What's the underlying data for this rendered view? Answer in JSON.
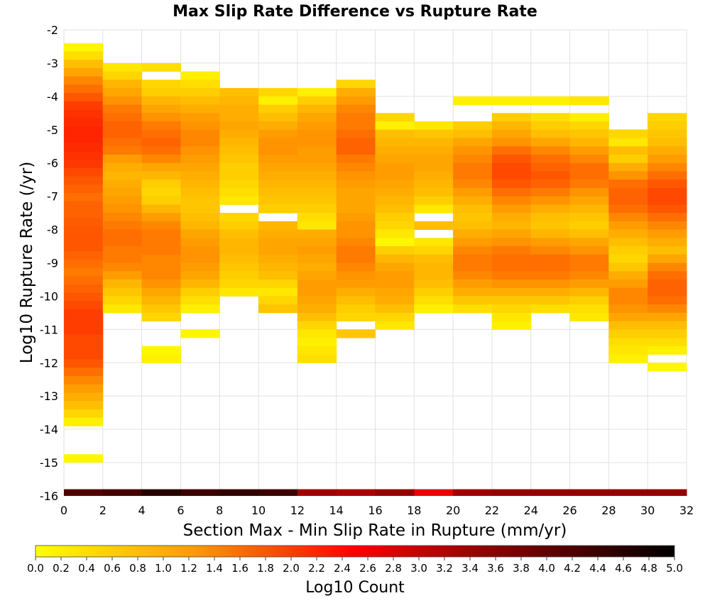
{
  "chart_data": {
    "type": "heatmap",
    "title": "Max Slip Rate Difference vs Rupture Rate",
    "xlabel": "Section Max - Min Slip Rate in Rupture (mm/yr)",
    "ylabel": "Log10 Rupture Rate (/yr)",
    "xlim": [
      0,
      32
    ],
    "ylim": [
      -16,
      -2
    ],
    "x_ticks": [
      0,
      2,
      4,
      6,
      8,
      10,
      12,
      14,
      16,
      18,
      20,
      22,
      24,
      26,
      28,
      30,
      32
    ],
    "y_ticks": [
      -2,
      -3,
      -4,
      -5,
      -6,
      -7,
      -8,
      -9,
      -10,
      -11,
      -12,
      -13,
      -14,
      -15,
      -16
    ],
    "x_bin_width": 2,
    "y_bin_height": 0.25,
    "grid": true,
    "colorbar": {
      "label": "Log10 Count",
      "range": [
        0.0,
        5.0
      ],
      "ticks": [
        "0.0",
        "0.2",
        "0.4",
        "0.6",
        "0.8",
        "1.0",
        "1.2",
        "1.4",
        "1.6",
        "1.8",
        "2.0",
        "2.2",
        "2.4",
        "2.6",
        "2.8",
        "3.0",
        "3.2",
        "3.4",
        "3.6",
        "3.8",
        "4.0",
        "4.2",
        "4.4",
        "4.6",
        "4.8",
        "5.0"
      ],
      "colors": [
        "#ffff00",
        "#ff9900",
        "#ff0000",
        "#7a0000",
        "#000000"
      ],
      "placement": "bottom"
    },
    "columns": [
      {
        "x_start": 0,
        "y_top": -2.4,
        "values": [
          0.1,
          0.4,
          0.8,
          1.1,
          1.4,
          1.6,
          1.8,
          2.0,
          2.1,
          2.15,
          2.2,
          2.2,
          2.15,
          2.1,
          2.05,
          1.9,
          1.8,
          1.7,
          1.6,
          1.7,
          1.7,
          1.75,
          1.8,
          1.8,
          1.8,
          1.7,
          1.6,
          1.5,
          1.6,
          1.7,
          1.8,
          1.9,
          2.0,
          2.0,
          2.0,
          1.9,
          1.9,
          1.9,
          1.8,
          1.6,
          1.4,
          1.2,
          1.0,
          0.8,
          0.5,
          0.2
        ],
        "extra": [
          {
            "y_low": -15.0,
            "y_high": -14.75,
            "value": 0.1
          },
          {
            "y_low": -16.0,
            "y_high": -15.8,
            "value": 4.2
          }
        ]
      },
      {
        "x_start": 2,
        "y_top": -3.0,
        "values": [
          0.3,
          0.5,
          0.9,
          1.1,
          1.3,
          1.5,
          1.6,
          1.7,
          1.7,
          1.6,
          1.5,
          1.2,
          1.0,
          0.9,
          1.0,
          1.1,
          1.2,
          1.3,
          1.4,
          1.5,
          1.6,
          1.6,
          1.5,
          1.5,
          1.4,
          1.2,
          0.9,
          0.7,
          0.5,
          0.3
        ],
        "extra": [
          {
            "y_low": -16.0,
            "y_high": -15.8,
            "value": 4.3
          }
        ]
      },
      {
        "x_start": 4,
        "y_top": -3.0,
        "values": [
          0.4,
          null,
          0.5,
          0.6,
          0.9,
          1.1,
          1.3,
          1.5,
          1.6,
          1.7,
          1.6,
          1.4,
          1.1,
          0.9,
          0.6,
          0.5,
          0.6,
          0.9,
          1.2,
          1.4,
          1.5,
          1.5,
          1.5,
          1.4,
          1.4,
          1.4,
          1.3,
          1.1,
          0.9,
          0.7,
          0.5,
          null,
          null,
          null,
          0.1,
          0.2
        ],
        "extra": [
          {
            "y_low": -16.0,
            "y_high": -15.8,
            "value": 4.6
          }
        ]
      },
      {
        "x_start": 6,
        "y_top": -3.25,
        "values": [
          0.2,
          0.4,
          0.6,
          0.8,
          1.0,
          1.2,
          1.3,
          1.4,
          1.4,
          1.3,
          1.2,
          1.1,
          1.0,
          0.9,
          0.8,
          0.7,
          0.7,
          0.8,
          0.9,
          1.1,
          1.2,
          1.3,
          1.3,
          1.2,
          1.1,
          0.9,
          0.6,
          0.4,
          0.2,
          null,
          null,
          0.1
        ],
        "extra": [
          {
            "y_low": -16.0,
            "y_high": -15.8,
            "value": 4.4
          }
        ]
      },
      {
        "x_start": 8,
        "y_top": -3.75,
        "values": [
          0.8,
          0.9,
          1.0,
          1.0,
          1.1,
          1.0,
          0.9,
          0.8,
          0.7,
          0.6,
          0.6,
          0.5,
          0.4,
          0.3,
          null,
          0.5,
          0.6,
          0.8,
          0.9,
          0.9,
          0.8,
          0.7,
          0.6,
          0.5,
          0.3
        ],
        "extra": [
          {
            "y_low": -16.0,
            "y_high": -15.8,
            "value": 4.5
          }
        ]
      },
      {
        "x_start": 10,
        "y_top": -3.75,
        "values": [
          0.5,
          0.2,
          0.6,
          0.8,
          1.0,
          1.2,
          1.3,
          1.3,
          1.2,
          1.1,
          1.0,
          0.9,
          0.8,
          0.7,
          0.6,
          null,
          0.9,
          1.0,
          1.1,
          1.1,
          1.0,
          0.9,
          0.8,
          0.5,
          0.3,
          0.5,
          0.7
        ],
        "extra": [
          {
            "y_low": -16.0,
            "y_high": -15.8,
            "value": 4.4
          }
        ]
      },
      {
        "x_start": 12,
        "y_top": -3.75,
        "values": [
          0.2,
          0.6,
          0.9,
          1.1,
          1.2,
          1.3,
          1.3,
          1.2,
          1.2,
          1.1,
          1.0,
          0.9,
          0.8,
          0.7,
          0.6,
          0.4,
          0.3,
          1.0,
          1.1,
          1.2,
          1.1,
          1.0,
          1.1,
          1.2,
          1.2,
          1.1,
          1.0,
          0.8,
          0.5,
          0.3,
          0.2,
          0.3,
          0.4
        ],
        "extra": [
          {
            "y_low": -16.0,
            "y_high": -15.8,
            "value": 3.4
          }
        ]
      },
      {
        "x_start": 14,
        "y_top": -3.5,
        "values": [
          0.5,
          1.0,
          1.2,
          1.4,
          1.5,
          1.5,
          1.6,
          1.7,
          1.7,
          1.5,
          1.4,
          1.3,
          1.2,
          1.1,
          1.1,
          1.1,
          1.2,
          1.3,
          1.3,
          1.4,
          1.5,
          1.5,
          1.4,
          1.3,
          1.2,
          1.0,
          0.8,
          0.6,
          0.5,
          null,
          0.7
        ],
        "extra": [
          {
            "y_low": -16.0,
            "y_high": -15.8,
            "value": 3.3
          }
        ]
      },
      {
        "x_start": 16,
        "y_top": -4.5,
        "values": [
          0.5,
          0.2,
          0.8,
          0.9,
          1.0,
          1.1,
          1.2,
          1.2,
          1.1,
          1.0,
          0.9,
          0.8,
          0.6,
          0.5,
          0.3,
          0.1,
          0.6,
          0.9,
          1.1,
          1.2,
          1.2,
          1.1,
          1.0,
          0.8,
          0.5,
          0.3
        ],
        "extra": [
          {
            "y_low": -16.0,
            "y_high": -15.8,
            "value": 3.5
          }
        ]
      },
      {
        "x_start": 18,
        "y_top": -4.75,
        "values": [
          0.3,
          0.7,
          0.9,
          1.0,
          1.1,
          1.1,
          1.0,
          0.9,
          0.8,
          0.6,
          0.3,
          null,
          0.8,
          null,
          0.3,
          0.5,
          0.8,
          0.9,
          0.9,
          0.8,
          0.6,
          0.4,
          0.2
        ],
        "extra": [
          {
            "y_low": -16.0,
            "y_high": -15.8,
            "value": 2.7
          }
        ]
      },
      {
        "x_start": 20,
        "y_top": -4.0,
        "values": [
          0.2,
          null,
          null,
          0.6,
          0.8,
          1.1,
          1.3,
          1.4,
          1.5,
          1.5,
          1.4,
          1.2,
          1.0,
          0.8,
          0.7,
          0.8,
          1.0,
          1.2,
          1.4,
          1.5,
          1.5,
          1.4,
          1.2,
          1.0,
          0.7,
          0.4
        ],
        "extra": [
          {
            "y_low": -16.0,
            "y_high": -15.8,
            "value": 3.4
          }
        ]
      },
      {
        "x_start": 22,
        "y_top": -4.0,
        "values": [
          0.2,
          null,
          0.6,
          0.9,
          1.1,
          1.3,
          1.6,
          1.8,
          1.9,
          1.9,
          1.8,
          1.6,
          1.4,
          1.2,
          1.0,
          0.9,
          1.1,
          1.3,
          1.5,
          1.6,
          1.6,
          1.5,
          1.3,
          1.0,
          0.7,
          0.5,
          0.3,
          0.2
        ],
        "extra": [
          {
            "y_low": -16.0,
            "y_high": -15.8,
            "value": 3.5
          }
        ]
      },
      {
        "x_start": 24,
        "y_top": -4.0,
        "values": [
          0.2,
          null,
          0.4,
          0.6,
          0.8,
          1.1,
          1.4,
          1.6,
          1.7,
          1.8,
          1.7,
          1.5,
          1.3,
          1.0,
          0.8,
          0.7,
          0.9,
          1.2,
          1.4,
          1.6,
          1.6,
          1.5,
          1.3,
          1.0,
          0.7,
          0.4
        ],
        "extra": [
          {
            "y_low": -16.0,
            "y_high": -15.8,
            "value": 3.5
          }
        ]
      },
      {
        "x_start": 26,
        "y_top": -4.0,
        "values": [
          0.3,
          null,
          0.2,
          0.5,
          0.7,
          0.9,
          1.2,
          1.4,
          1.6,
          1.6,
          1.5,
          1.3,
          1.1,
          0.9,
          0.7,
          0.6,
          0.8,
          1.1,
          1.3,
          1.5,
          1.5,
          1.4,
          1.2,
          0.9,
          0.6,
          0.4,
          0.3
        ],
        "extra": [
          {
            "y_low": -16.0,
            "y_high": -15.8,
            "value": 3.5
          }
        ]
      },
      {
        "x_start": 28,
        "y_top": -5.0,
        "values": [
          0.5,
          0.3,
          0.8,
          0.6,
          1.0,
          1.3,
          1.6,
          1.7,
          1.7,
          1.6,
          1.4,
          1.2,
          1.0,
          0.8,
          0.6,
          0.5,
          0.7,
          1.0,
          1.2,
          1.4,
          1.4,
          1.3,
          1.1,
          0.8,
          0.6,
          0.4,
          0.3,
          0.2
        ],
        "extra": [
          {
            "y_low": -16.0,
            "y_high": -15.8,
            "value": 3.5
          }
        ]
      },
      {
        "x_start": 30,
        "y_top": -4.5,
        "values": [
          0.5,
          0.6,
          0.7,
          0.8,
          1.0,
          1.2,
          1.4,
          1.6,
          1.8,
          1.9,
          1.9,
          1.8,
          1.6,
          1.4,
          1.2,
          1.0,
          0.8,
          1.1,
          1.4,
          1.6,
          1.7,
          1.7,
          1.6,
          1.4,
          1.1,
          0.8,
          0.6,
          0.4,
          0.2,
          null,
          0.1
        ],
        "extra": [
          {
            "y_low": -16.0,
            "y_high": -15.8,
            "value": 3.5
          }
        ]
      }
    ]
  }
}
